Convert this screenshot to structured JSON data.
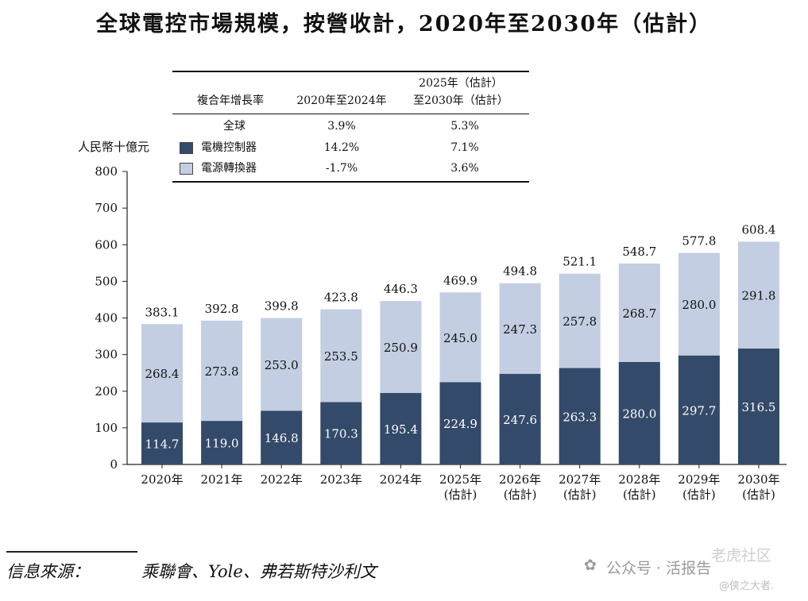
{
  "title": "全球電控市場規模，按營收計，2020年至2030年（估計）",
  "unit_label": "人民幣十億元",
  "cagr_table": {
    "header": {
      "segment": "複合年增長率",
      "period1": "2020年至2024年",
      "period2_line1": "2025年（估計）",
      "period2_line2": "至2030年（估計）"
    },
    "rows": [
      {
        "label": "全球",
        "v1": "3.9%",
        "v2": "5.3%",
        "swatch": ""
      },
      {
        "label": "電機控制器",
        "v1": "14.2%",
        "v2": "7.1%",
        "swatch": "#344A6A"
      },
      {
        "label": "電源轉換器",
        "v1": "-1.7%",
        "v2": "3.6%",
        "swatch": "#C3CEE2"
      }
    ]
  },
  "chart_data": {
    "type": "bar",
    "stacked": true,
    "categories": [
      "2020年",
      "2021年",
      "2022年",
      "2023年",
      "2024年",
      "2025年\n(估計)",
      "2026年\n(估計)",
      "2027年\n(估計)",
      "2028年\n(估計)",
      "2029年\n(估計)",
      "2030年\n(估計)"
    ],
    "series": [
      {
        "name": "電機控制器",
        "color": "#344A6A",
        "values": [
          114.7,
          119.0,
          146.8,
          170.3,
          195.4,
          224.9,
          247.6,
          263.3,
          280.0,
          297.7,
          316.5
        ]
      },
      {
        "name": "電源轉換器",
        "color": "#C3CEE2",
        "values": [
          268.4,
          273.8,
          253.0,
          253.5,
          250.9,
          245.0,
          247.3,
          257.8,
          268.7,
          280.0,
          291.8
        ]
      }
    ],
    "totals": [
      383.1,
      392.8,
      399.8,
      423.8,
      446.3,
      469.9,
      494.8,
      521.1,
      548.7,
      577.8,
      608.4
    ],
    "ylim": [
      0,
      800
    ],
    "yticks": [
      0,
      100,
      200,
      300,
      400,
      500,
      600,
      700,
      800
    ],
    "ylabel": "人民幣十億元",
    "xlabel": ""
  },
  "footer": {
    "source_label": "信息來源：",
    "source_text": "乘聯會、Yole、弗若斯特沙利文"
  },
  "watermark": {
    "text1": "公众号 · 活报告",
    "text2": "老虎社区",
    "text3": "@侠之大者."
  }
}
